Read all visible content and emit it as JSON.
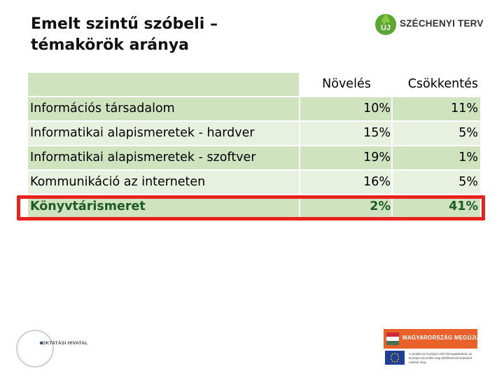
{
  "title": {
    "line1": "Emelt szintű szóbeli –",
    "line2": "témakörök aránya"
  },
  "logo_top": {
    "text": "SZÉCHENYI TERV",
    "badge": "ÚJ",
    "color": "#5aa832"
  },
  "table": {
    "headers": [
      "",
      "Növelés",
      "Csökkentés"
    ],
    "rows": [
      {
        "label": "Információs társadalom",
        "novekedes": "10%",
        "csokkentes": "11%"
      },
      {
        "label": "Informatikai alapismeretek - hardver",
        "novekedes": "15%",
        "csokkentes": "5%"
      },
      {
        "label": "Informatikai alapismeretek - szoftver",
        "novekedes": "19%",
        "csokkentes": "1%"
      },
      {
        "label": "Kommunikáció az interneten",
        "novekedes": "16%",
        "csokkentes": "5%"
      },
      {
        "label": "Könyvtárismeret",
        "novekedes": "2%",
        "csokkentes": "41%"
      }
    ],
    "colors": {
      "row_dark": "#cfe3bf",
      "row_light": "#e8f1e0",
      "highlight_border": "#e8231e",
      "highlight_text": "#1e5a2b"
    }
  },
  "footer": {
    "left_logo_text": "OKTATÁSI HIVATAL",
    "right_logo_text": "MAGYARORSZÁG MEGÚJUL",
    "eu_text": "A projekt az Európai Unió támogatásával, az Európai Szociális Alap társfinanszírozásával valósul meg."
  }
}
